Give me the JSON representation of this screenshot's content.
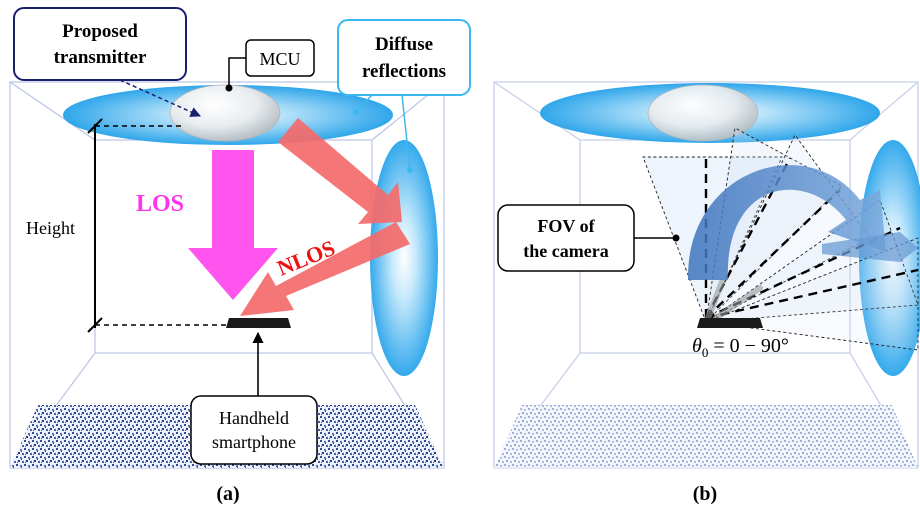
{
  "panel_a": {
    "labels": {
      "proposed_transmitter_line1": "Proposed",
      "proposed_transmitter_line2": "transmitter",
      "mcu": "MCU",
      "diffuse_line1": "Diffuse",
      "diffuse_line2": "reflections",
      "los": "LOS",
      "nlos": "NLOS",
      "height": "Height",
      "handheld_line1": "Handheld",
      "handheld_line2": "smartphone"
    },
    "caption": "(a)"
  },
  "panel_b": {
    "labels": {
      "fov_line1": "FOV of",
      "fov_line2": "the camera",
      "theta_symbol": "θ",
      "theta_subscript": "0",
      "theta_range": " = 0 − 90°"
    },
    "caption": "(b)"
  },
  "colors": {
    "room_edge": "#b9c4e6",
    "ellipse_blue": "#3fb2ee",
    "los_arrow": "#ff55ee",
    "nlos_arrow": "#f46a6a",
    "nlos_text": "#ee1111",
    "los_text": "#ff33ee",
    "proposed_box": "#1a1f6e",
    "diffuse_box": "#3cb8f0",
    "rotation_arrow": "#5f8ec9",
    "floor": "#2a4a9a"
  }
}
